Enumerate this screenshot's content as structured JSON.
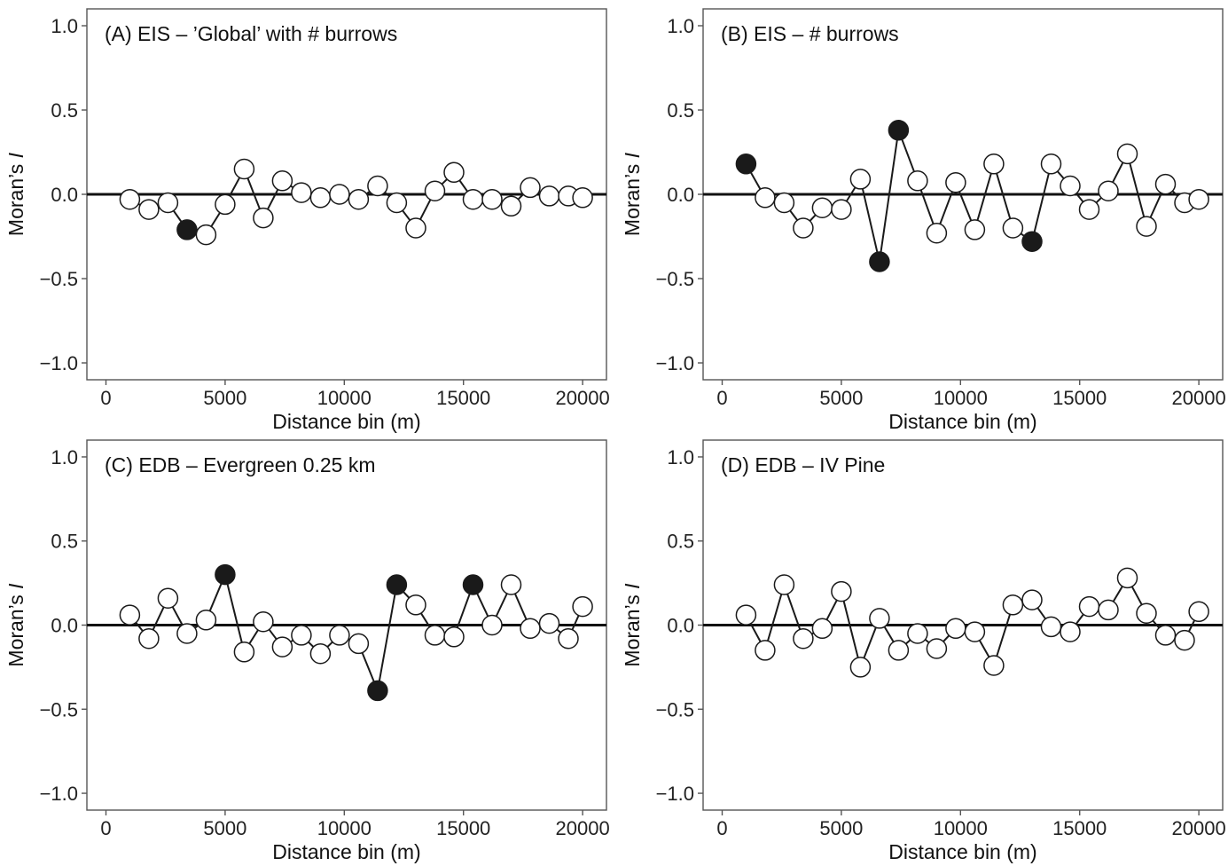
{
  "figure": {
    "colors": {
      "frame": "#555555",
      "line": "#1a1a1a",
      "zero_line": "#111111",
      "filled": "#1a1a1a",
      "open_fill": "#ffffff"
    }
  },
  "chart_data": [
    {
      "type": "line",
      "title": "(A) EIS – ’Global’ with # burrows",
      "xlabel": "Distance bin (m)",
      "ylabel": "Moran’s ",
      "ylabel_italic": "I",
      "xlim": [
        -800,
        21000
      ],
      "ylim": [
        -1.1,
        1.1
      ],
      "xticks": [
        0,
        5000,
        10000,
        15000,
        20000
      ],
      "xtick_labels": [
        "0",
        "5000",
        "10000",
        "15000",
        "20000"
      ],
      "yticks": [
        1.0,
        0.5,
        0.0,
        -0.5,
        -1.0
      ],
      "ytick_labels": [
        "1.0",
        "0.5",
        "0.0",
        "−0.5",
        "−1.0"
      ],
      "x": [
        1000,
        1800,
        2600,
        3400,
        4200,
        5000,
        5800,
        6600,
        7400,
        8200,
        9000,
        9800,
        10600,
        11400,
        12200,
        13000,
        13800,
        14600,
        15400,
        16200,
        17000,
        17800,
        18600,
        19400,
        20000
      ],
      "y": [
        -0.03,
        -0.09,
        -0.05,
        -0.21,
        -0.24,
        -0.06,
        0.15,
        -0.14,
        0.08,
        0.01,
        -0.02,
        0.0,
        -0.03,
        0.05,
        -0.05,
        -0.2,
        0.02,
        0.13,
        -0.03,
        -0.03,
        -0.07,
        0.04,
        -0.01,
        -0.01,
        -0.02
      ],
      "significant": [
        false,
        false,
        false,
        true,
        false,
        false,
        false,
        false,
        false,
        false,
        false,
        false,
        false,
        false,
        false,
        false,
        false,
        false,
        false,
        false,
        false,
        false,
        false,
        false,
        false
      ]
    },
    {
      "type": "line",
      "title": "(B) EIS – # burrows",
      "xlabel": "Distance bin (m)",
      "ylabel": "Moran’s ",
      "ylabel_italic": "I",
      "xlim": [
        -800,
        21000
      ],
      "ylim": [
        -1.1,
        1.1
      ],
      "xticks": [
        0,
        5000,
        10000,
        15000,
        20000
      ],
      "xtick_labels": [
        "0",
        "5000",
        "10000",
        "15000",
        "20000"
      ],
      "yticks": [
        1.0,
        0.5,
        0.0,
        -0.5,
        -1.0
      ],
      "ytick_labels": [
        "1.0",
        "0.5",
        "0.0",
        "−0.5",
        "−1.0"
      ],
      "x": [
        1000,
        1800,
        2600,
        3400,
        4200,
        5000,
        5800,
        6600,
        7400,
        8200,
        9000,
        9800,
        10600,
        11400,
        12200,
        13000,
        13800,
        14600,
        15400,
        16200,
        17000,
        17800,
        18600,
        19400,
        20000
      ],
      "y": [
        0.18,
        -0.02,
        -0.05,
        -0.2,
        -0.08,
        -0.09,
        0.09,
        -0.4,
        0.38,
        0.08,
        -0.23,
        0.07,
        -0.21,
        0.18,
        -0.2,
        -0.28,
        0.18,
        0.05,
        -0.09,
        0.02,
        0.24,
        -0.19,
        0.06,
        -0.05,
        -0.03
      ],
      "significant": [
        true,
        false,
        false,
        false,
        false,
        false,
        false,
        true,
        true,
        false,
        false,
        false,
        false,
        false,
        false,
        true,
        false,
        false,
        false,
        false,
        false,
        false,
        false,
        false,
        false
      ]
    },
    {
      "type": "line",
      "title": "(C) EDB – Evergreen 0.25 km",
      "xlabel": "Distance bin (m)",
      "ylabel": "Moran’s ",
      "ylabel_italic": "I",
      "xlim": [
        -800,
        21000
      ],
      "ylim": [
        -1.1,
        1.1
      ],
      "xticks": [
        0,
        5000,
        10000,
        15000,
        20000
      ],
      "xtick_labels": [
        "0",
        "5000",
        "10000",
        "15000",
        "20000"
      ],
      "yticks": [
        1.0,
        0.5,
        0.0,
        -0.5,
        -1.0
      ],
      "ytick_labels": [
        "1.0",
        "0.5",
        "0.0",
        "−0.5",
        "−1.0"
      ],
      "x": [
        1000,
        1800,
        2600,
        3400,
        4200,
        5000,
        5800,
        6600,
        7400,
        8200,
        9000,
        9800,
        10600,
        11400,
        12200,
        13000,
        13800,
        14600,
        15400,
        16200,
        17000,
        17800,
        18600,
        19400,
        20000
      ],
      "y": [
        0.06,
        -0.08,
        0.16,
        -0.05,
        0.03,
        0.3,
        -0.16,
        0.02,
        -0.13,
        -0.06,
        -0.17,
        -0.06,
        -0.11,
        -0.39,
        0.24,
        0.12,
        -0.06,
        -0.07,
        0.24,
        0.0,
        0.24,
        -0.02,
        0.01,
        -0.08,
        0.11
      ],
      "significant": [
        false,
        false,
        false,
        false,
        false,
        true,
        false,
        false,
        false,
        false,
        false,
        false,
        false,
        true,
        true,
        false,
        false,
        false,
        true,
        false,
        false,
        false,
        false,
        false,
        false
      ]
    },
    {
      "type": "line",
      "title": "(D) EDB – IV Pine",
      "xlabel": "Distance bin (m)",
      "ylabel": "Moran’s ",
      "ylabel_italic": "I",
      "xlim": [
        -800,
        21000
      ],
      "ylim": [
        -1.1,
        1.1
      ],
      "xticks": [
        0,
        5000,
        10000,
        15000,
        20000
      ],
      "xtick_labels": [
        "0",
        "5000",
        "10000",
        "15000",
        "20000"
      ],
      "yticks": [
        1.0,
        0.5,
        0.0,
        -0.5,
        -1.0
      ],
      "ytick_labels": [
        "1.0",
        "0.5",
        "0.0",
        "−0.5",
        "−1.0"
      ],
      "x": [
        1000,
        1800,
        2600,
        3400,
        4200,
        5000,
        5800,
        6600,
        7400,
        8200,
        9000,
        9800,
        10600,
        11400,
        12200,
        13000,
        13800,
        14600,
        15400,
        16200,
        17000,
        17800,
        18600,
        19400,
        20000
      ],
      "y": [
        0.06,
        -0.15,
        0.24,
        -0.08,
        -0.02,
        0.2,
        -0.25,
        0.04,
        -0.15,
        -0.05,
        -0.14,
        -0.02,
        -0.04,
        -0.24,
        0.12,
        0.15,
        -0.01,
        -0.04,
        0.11,
        0.09,
        0.28,
        0.07,
        -0.06,
        -0.09,
        0.08
      ],
      "significant": [
        false,
        false,
        false,
        false,
        false,
        false,
        false,
        false,
        false,
        false,
        false,
        false,
        false,
        false,
        false,
        false,
        false,
        false,
        false,
        false,
        false,
        false,
        false,
        false,
        false
      ]
    }
  ]
}
